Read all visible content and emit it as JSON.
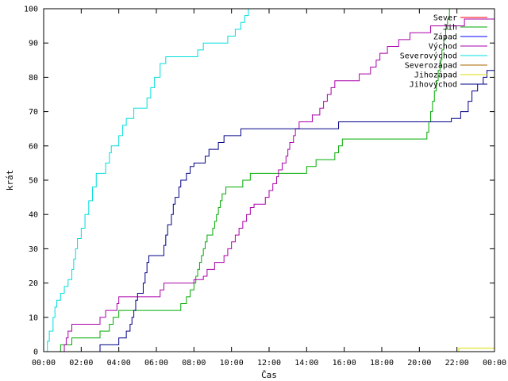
{
  "chart_data": {
    "type": "line",
    "title": "",
    "xlabel": "Čas",
    "ylabel": "krát",
    "xlim": [
      0,
      24
    ],
    "ylim": [
      0,
      100
    ],
    "xticks": [
      {
        "value": 0,
        "label": "00:00"
      },
      {
        "value": 2,
        "label": "02:00"
      },
      {
        "value": 4,
        "label": "04:00"
      },
      {
        "value": 6,
        "label": "06:00"
      },
      {
        "value": 8,
        "label": "08:00"
      },
      {
        "value": 10,
        "label": "10:00"
      },
      {
        "value": 12,
        "label": "12:00"
      },
      {
        "value": 14,
        "label": "14:00"
      },
      {
        "value": 16,
        "label": "16:00"
      },
      {
        "value": 18,
        "label": "18:00"
      },
      {
        "value": 20,
        "label": "20:00"
      },
      {
        "value": 22,
        "label": "22:00"
      },
      {
        "value": 24,
        "label": "00:00"
      }
    ],
    "yticks": [
      0,
      10,
      20,
      30,
      40,
      50,
      60,
      70,
      80,
      90,
      100
    ],
    "grid": false,
    "legend_position": "top-right",
    "series": [
      {
        "name": "Sever",
        "color": "#ff0000",
        "points": []
      },
      {
        "name": "Jih",
        "color": "#00aa00",
        "points": [
          [
            0.8,
            0
          ],
          [
            0.9,
            2
          ],
          [
            1.5,
            4
          ],
          [
            3.0,
            6
          ],
          [
            3.5,
            8
          ],
          [
            3.7,
            10
          ],
          [
            4.0,
            12
          ],
          [
            7.3,
            14
          ],
          [
            7.6,
            16
          ],
          [
            7.8,
            18
          ],
          [
            8.0,
            20
          ],
          [
            8.1,
            22
          ],
          [
            8.2,
            24
          ],
          [
            8.3,
            26
          ],
          [
            8.4,
            28
          ],
          [
            8.5,
            30
          ],
          [
            8.6,
            32
          ],
          [
            8.7,
            34
          ],
          [
            9.0,
            36
          ],
          [
            9.1,
            38
          ],
          [
            9.2,
            40
          ],
          [
            9.3,
            42
          ],
          [
            9.4,
            44
          ],
          [
            9.5,
            46
          ],
          [
            9.7,
            48
          ],
          [
            10.6,
            50
          ],
          [
            11.0,
            52
          ],
          [
            14.0,
            54
          ],
          [
            14.5,
            56
          ],
          [
            15.5,
            58
          ],
          [
            15.7,
            60
          ],
          [
            15.9,
            62
          ],
          [
            20.4,
            64
          ],
          [
            20.5,
            67
          ],
          [
            20.6,
            70
          ],
          [
            20.7,
            73
          ],
          [
            20.8,
            76
          ],
          [
            20.9,
            79
          ],
          [
            21.0,
            82
          ],
          [
            21.1,
            85
          ],
          [
            21.2,
            88
          ],
          [
            21.3,
            91
          ],
          [
            21.4,
            94
          ],
          [
            21.5,
            97
          ],
          [
            21.6,
            100
          ]
        ]
      },
      {
        "name": "Západ",
        "color": "#0000ff",
        "points": []
      },
      {
        "name": "Východ",
        "color": "#aa00aa",
        "points": [
          [
            1.0,
            0
          ],
          [
            1.1,
            2
          ],
          [
            1.2,
            4
          ],
          [
            1.3,
            6
          ],
          [
            1.5,
            8
          ],
          [
            3.0,
            10
          ],
          [
            3.3,
            12
          ],
          [
            3.9,
            14
          ],
          [
            4.0,
            16
          ],
          [
            6.2,
            18
          ],
          [
            6.4,
            20
          ],
          [
            8.0,
            21
          ],
          [
            8.5,
            22
          ],
          [
            8.7,
            24
          ],
          [
            9.1,
            26
          ],
          [
            9.6,
            28
          ],
          [
            9.8,
            30
          ],
          [
            10.0,
            32
          ],
          [
            10.2,
            34
          ],
          [
            10.4,
            36
          ],
          [
            10.6,
            38
          ],
          [
            10.8,
            40
          ],
          [
            11.0,
            42
          ],
          [
            11.2,
            43
          ],
          [
            11.8,
            45
          ],
          [
            12.0,
            47
          ],
          [
            12.2,
            49
          ],
          [
            12.4,
            51
          ],
          [
            12.5,
            53
          ],
          [
            12.7,
            55
          ],
          [
            12.9,
            57
          ],
          [
            13.0,
            59
          ],
          [
            13.1,
            61
          ],
          [
            13.3,
            63
          ],
          [
            13.4,
            65
          ],
          [
            13.6,
            67
          ],
          [
            14.3,
            69
          ],
          [
            14.7,
            71
          ],
          [
            14.9,
            73
          ],
          [
            15.1,
            75
          ],
          [
            15.3,
            77
          ],
          [
            15.5,
            79
          ],
          [
            16.8,
            81
          ],
          [
            17.4,
            83
          ],
          [
            17.7,
            85
          ],
          [
            17.9,
            87
          ],
          [
            18.3,
            89
          ],
          [
            18.9,
            91
          ],
          [
            19.5,
            93
          ],
          [
            20.6,
            95
          ],
          [
            22.4,
            97
          ],
          [
            24.0,
            100
          ]
        ]
      },
      {
        "name": "Severovýchod",
        "color": "#00dddd",
        "points": [
          [
            0.1,
            0
          ],
          [
            0.2,
            3
          ],
          [
            0.3,
            6
          ],
          [
            0.5,
            10
          ],
          [
            0.6,
            13
          ],
          [
            0.7,
            15
          ],
          [
            0.9,
            17
          ],
          [
            1.1,
            19
          ],
          [
            1.3,
            21
          ],
          [
            1.5,
            24
          ],
          [
            1.6,
            27
          ],
          [
            1.7,
            30
          ],
          [
            1.8,
            33
          ],
          [
            2.0,
            36
          ],
          [
            2.2,
            40
          ],
          [
            2.4,
            44
          ],
          [
            2.6,
            48
          ],
          [
            2.8,
            52
          ],
          [
            3.3,
            55
          ],
          [
            3.5,
            58
          ],
          [
            3.6,
            60
          ],
          [
            4.0,
            63
          ],
          [
            4.2,
            66
          ],
          [
            4.4,
            68
          ],
          [
            4.8,
            71
          ],
          [
            5.5,
            74
          ],
          [
            5.7,
            77
          ],
          [
            5.9,
            80
          ],
          [
            6.2,
            84
          ],
          [
            6.5,
            86
          ],
          [
            8.2,
            88
          ],
          [
            8.5,
            90
          ],
          [
            9.8,
            92
          ],
          [
            10.2,
            94
          ],
          [
            10.5,
            96
          ],
          [
            10.7,
            98
          ],
          [
            10.9,
            100
          ]
        ]
      },
      {
        "name": "Severozápad",
        "color": "#aa6600",
        "points": []
      },
      {
        "name": "Jihozápad",
        "color": "#dddd00",
        "points": [
          [
            22.0,
            0
          ],
          [
            22.1,
            1
          ],
          [
            24.0,
            1
          ]
        ]
      },
      {
        "name": "Jihovýchod",
        "color": "#000088",
        "points": [
          [
            2.9,
            0
          ],
          [
            3.0,
            2
          ],
          [
            4.0,
            4
          ],
          [
            4.4,
            6
          ],
          [
            4.6,
            8
          ],
          [
            4.7,
            10
          ],
          [
            4.8,
            12
          ],
          [
            4.9,
            15
          ],
          [
            5.0,
            17
          ],
          [
            5.3,
            20
          ],
          [
            5.4,
            23
          ],
          [
            5.5,
            26
          ],
          [
            5.6,
            28
          ],
          [
            6.4,
            31
          ],
          [
            6.5,
            34
          ],
          [
            6.6,
            37
          ],
          [
            6.8,
            40
          ],
          [
            6.9,
            43
          ],
          [
            7.0,
            45
          ],
          [
            7.2,
            48
          ],
          [
            7.3,
            50
          ],
          [
            7.6,
            52
          ],
          [
            7.8,
            54
          ],
          [
            8.0,
            55
          ],
          [
            8.6,
            57
          ],
          [
            8.8,
            59
          ],
          [
            9.3,
            61
          ],
          [
            9.6,
            63
          ],
          [
            10.5,
            65
          ],
          [
            15.7,
            67
          ],
          [
            21.7,
            68
          ],
          [
            22.2,
            70
          ],
          [
            22.6,
            73
          ],
          [
            22.8,
            76
          ],
          [
            23.1,
            78
          ],
          [
            23.4,
            80
          ],
          [
            23.6,
            82
          ],
          [
            24.0,
            82
          ]
        ]
      }
    ]
  }
}
